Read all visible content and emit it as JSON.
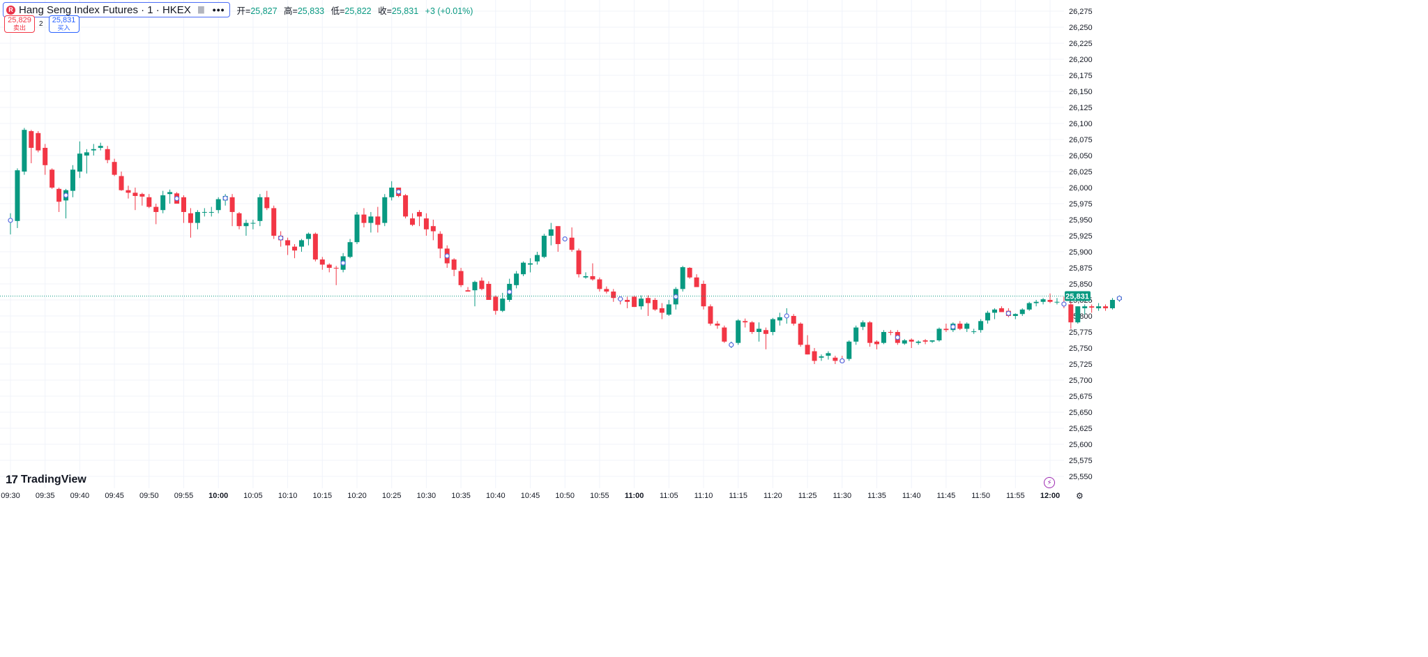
{
  "legend": {
    "symbol_badge": "R",
    "title": "Hang Seng Index Futures · 1 · HKEX",
    "more": "•••",
    "open_label": "开=",
    "open_value": "25,827",
    "high_label": "高=",
    "high_value": "25,833",
    "low_label": "低=",
    "low_value": "25,822",
    "close_label": "收=",
    "close_value": "25,831",
    "change": "+3 (+0.01%)"
  },
  "trade": {
    "sell_price": "25,829",
    "sell_label": "卖出",
    "spread": "2",
    "buy_price": "25,831",
    "buy_label": "买入"
  },
  "brand": {
    "logo_mark": "17",
    "name": "TradingView"
  },
  "colors": {
    "up": "#089981",
    "down": "#f23645",
    "grid": "#f0f3fa",
    "marker": "#5b6ee1"
  },
  "chart_data": {
    "type": "candlestick",
    "title": "Hang Seng Index Futures · 1 · HKEX",
    "interval": "1 minute",
    "ylim": [
      25540,
      26285
    ],
    "y_ticks": [
      "26,275",
      "26,250",
      "26,225",
      "26,200",
      "26,175",
      "26,150",
      "26,125",
      "26,100",
      "26,075",
      "26,050",
      "26,025",
      "26,000",
      "25,975",
      "25,950",
      "25,925",
      "25,900",
      "25,875",
      "25,850",
      "25,825",
      "25,800",
      "25,775",
      "25,750",
      "25,725",
      "25,700",
      "25,675",
      "25,650",
      "25,625",
      "25,600",
      "25,575",
      "25,550"
    ],
    "x_ticks": [
      "09:30",
      "09:35",
      "09:40",
      "09:45",
      "09:50",
      "09:55",
      "10:00",
      "10:05",
      "10:10",
      "10:15",
      "10:20",
      "10:25",
      "10:30",
      "10:35",
      "10:40",
      "10:45",
      "10:50",
      "10:55",
      "11:00",
      "11:05",
      "11:10",
      "11:15",
      "11:20",
      "11:25",
      "11:30",
      "11:35",
      "11:40",
      "11:45",
      "11:50",
      "11:55",
      "12:00"
    ],
    "x_ticks_bold": [
      "10:00",
      "11:00",
      "12:00"
    ],
    "last_price": "25,831",
    "last_price_value": 25831,
    "candles": [
      [
        25948,
        25960,
        25927,
        25950
      ],
      [
        25948,
        26030,
        25937,
        26027
      ],
      [
        26025,
        26093,
        26020,
        26090
      ],
      [
        26088,
        26090,
        26038,
        26062
      ],
      [
        26085,
        26088,
        26055,
        26058
      ],
      [
        26062,
        26068,
        26020,
        26035
      ],
      [
        26028,
        26030,
        25998,
        26000
      ],
      [
        25998,
        26000,
        25962,
        25978
      ],
      [
        25980,
        25998,
        25952,
        25996
      ],
      [
        25995,
        26035,
        25985,
        26028
      ],
      [
        26025,
        26072,
        26015,
        26053
      ],
      [
        26050,
        26060,
        26022,
        26055
      ],
      [
        26058,
        26068,
        26050,
        26060
      ],
      [
        26062,
        26070,
        26058,
        26065
      ],
      [
        26060,
        26065,
        26038,
        26043
      ],
      [
        26040,
        26045,
        26018,
        26020
      ],
      [
        26018,
        26025,
        25995,
        25996
      ],
      [
        25996,
        26003,
        25983,
        25992
      ],
      [
        25992,
        26000,
        25965,
        25987
      ],
      [
        25990,
        25992,
        25972,
        25986
      ],
      [
        25985,
        25990,
        25968,
        25970
      ],
      [
        25970,
        25975,
        25943,
        25962
      ],
      [
        25965,
        25995,
        25960,
        25988
      ],
      [
        25990,
        25997,
        25975,
        25993
      ],
      [
        25991,
        25993,
        25978,
        25975
      ],
      [
        25985,
        25988,
        25945,
        25962
      ],
      [
        25960,
        25968,
        25922,
        25945
      ],
      [
        25945,
        25965,
        25935,
        25962
      ],
      [
        25962,
        25968,
        25955,
        25962
      ],
      [
        25962,
        25970,
        25955,
        25962
      ],
      [
        25965,
        25985,
        25960,
        25982
      ],
      [
        25980,
        25990,
        25972,
        25987
      ],
      [
        25985,
        25990,
        25940,
        25962
      ],
      [
        25960,
        25962,
        25935,
        25940
      ],
      [
        25940,
        25950,
        25925,
        25945
      ],
      [
        25945,
        25950,
        25935,
        25945
      ],
      [
        25948,
        25990,
        25940,
        25985
      ],
      [
        25985,
        25995,
        25965,
        25968
      ],
      [
        25968,
        25972,
        25920,
        25925
      ],
      [
        25925,
        25932,
        25908,
        25918
      ],
      [
        25918,
        25922,
        25895,
        25910
      ],
      [
        25908,
        25912,
        25890,
        25902
      ],
      [
        25908,
        25920,
        25900,
        25918
      ],
      [
        25920,
        25930,
        25910,
        25928
      ],
      [
        25928,
        25930,
        25885,
        25888
      ],
      [
        25888,
        25892,
        25872,
        25880
      ],
      [
        25880,
        25882,
        25868,
        25875
      ],
      [
        25875,
        25878,
        25848,
        25874
      ],
      [
        25872,
        25898,
        25868,
        25893
      ],
      [
        25892,
        25920,
        25890,
        25915
      ],
      [
        25915,
        25962,
        25912,
        25958
      ],
      [
        25958,
        25968,
        25938,
        25945
      ],
      [
        25945,
        25962,
        25930,
        25955
      ],
      [
        25955,
        25970,
        25930,
        25942
      ],
      [
        25945,
        25990,
        25940,
        25985
      ],
      [
        25985,
        26010,
        25980,
        26000
      ],
      [
        26000,
        26000,
        25985,
        25987
      ],
      [
        25988,
        25990,
        25952,
        25955
      ],
      [
        25952,
        25960,
        25940,
        25942
      ],
      [
        25962,
        25965,
        25940,
        25955
      ],
      [
        25952,
        25960,
        25925,
        25935
      ],
      [
        25940,
        25950,
        25918,
        25932
      ],
      [
        25928,
        25932,
        25890,
        25905
      ],
      [
        25905,
        25910,
        25875,
        25882
      ],
      [
        25888,
        25890,
        25862,
        25872
      ],
      [
        25870,
        25875,
        25845,
        25848
      ],
      [
        25840,
        25845,
        25838,
        25838
      ],
      [
        25840,
        25855,
        25815,
        25853
      ],
      [
        25855,
        25860,
        25840,
        25842
      ],
      [
        25850,
        25854,
        25825,
        25825
      ],
      [
        25830,
        25832,
        25802,
        25808
      ],
      [
        25808,
        25836,
        25806,
        25827
      ],
      [
        25825,
        25858,
        25822,
        25850
      ],
      [
        25848,
        25870,
        25843,
        25866
      ],
      [
        25865,
        25885,
        25862,
        25883
      ],
      [
        25880,
        25890,
        25868,
        25882
      ],
      [
        25885,
        25900,
        25880,
        25895
      ],
      [
        25892,
        25928,
        25890,
        25925
      ],
      [
        25925,
        25945,
        25910,
        25935
      ],
      [
        25940,
        25940,
        25900,
        25912
      ],
      [
        25920,
        25922,
        25917,
        25920
      ],
      [
        25922,
        25938,
        25900,
        25903
      ],
      [
        25902,
        25905,
        25860,
        25865
      ],
      [
        25860,
        25868,
        25858,
        25862
      ],
      [
        25862,
        25882,
        25855,
        25857
      ],
      [
        25857,
        25860,
        25838,
        25842
      ],
      [
        25842,
        25846,
        25835,
        25838
      ],
      [
        25838,
        25842,
        25822,
        25828
      ],
      [
        25828,
        25830,
        25818,
        25825
      ],
      [
        25825,
        25830,
        25812,
        25822
      ],
      [
        25830,
        25832,
        25814,
        25814
      ],
      [
        25815,
        25832,
        25810,
        25827
      ],
      [
        25828,
        25832,
        25800,
        25820
      ],
      [
        25825,
        25828,
        25808,
        25810
      ],
      [
        25812,
        25820,
        25795,
        25805
      ],
      [
        25802,
        25825,
        25800,
        25818
      ],
      [
        25818,
        25845,
        25810,
        25842
      ],
      [
        25842,
        25878,
        25838,
        25876
      ],
      [
        25875,
        25876,
        25858,
        25860
      ],
      [
        25860,
        25865,
        25848,
        25845
      ],
      [
        25850,
        25855,
        25810,
        25815
      ],
      [
        25815,
        25818,
        25785,
        25788
      ],
      [
        25788,
        25792,
        25780,
        25785
      ],
      [
        25782,
        25785,
        25758,
        25760
      ],
      [
        25755,
        25760,
        25750,
        25755
      ],
      [
        25758,
        25795,
        25755,
        25793
      ],
      [
        25792,
        25796,
        25782,
        25790
      ],
      [
        25790,
        25792,
        25772,
        25775
      ],
      [
        25775,
        25790,
        25760,
        25780
      ],
      [
        25778,
        25782,
        25748,
        25772
      ],
      [
        25775,
        25797,
        25770,
        25795
      ],
      [
        25793,
        25805,
        25785,
        25798
      ],
      [
        25800,
        25812,
        25788,
        25800
      ],
      [
        25800,
        25803,
        25785,
        25788
      ],
      [
        25788,
        25790,
        25752,
        25755
      ],
      [
        25755,
        25770,
        25740,
        25740
      ],
      [
        25745,
        25750,
        25725,
        25730
      ],
      [
        25735,
        25740,
        25730,
        25737
      ],
      [
        25738,
        25745,
        25732,
        25742
      ],
      [
        25735,
        25738,
        25725,
        25730
      ],
      [
        25732,
        25738,
        25728,
        25728
      ],
      [
        25733,
        25762,
        25730,
        25760
      ],
      [
        25760,
        25785,
        25755,
        25782
      ],
      [
        25783,
        25793,
        25778,
        25790
      ],
      [
        25790,
        25792,
        25752,
        25758
      ],
      [
        25760,
        25762,
        25748,
        25756
      ],
      [
        25758,
        25778,
        25756,
        25775
      ],
      [
        25775,
        25778,
        25770,
        25774
      ],
      [
        25775,
        25778,
        25755,
        25758
      ],
      [
        25757,
        25764,
        25755,
        25762
      ],
      [
        25763,
        25765,
        25750,
        25760
      ],
      [
        25758,
        25762,
        25755,
        25760
      ],
      [
        25762,
        25764,
        25756,
        25760
      ],
      [
        25760,
        25762,
        25758,
        25762
      ],
      [
        25762,
        25782,
        25760,
        25780
      ],
      [
        25780,
        25788,
        25775,
        25778
      ],
      [
        25778,
        25790,
        25775,
        25788
      ],
      [
        25788,
        25792,
        25778,
        25780
      ],
      [
        25780,
        25790,
        25775,
        25788
      ],
      [
        25775,
        25780,
        25772,
        25776
      ],
      [
        25778,
        25795,
        25774,
        25792
      ],
      [
        25793,
        25808,
        25788,
        25805
      ],
      [
        25805,
        25812,
        25795,
        25810
      ],
      [
        25812,
        25815,
        25808,
        25806
      ],
      [
        25808,
        25812,
        25798,
        25800
      ],
      [
        25800,
        25804,
        25795,
        25803
      ],
      [
        25803,
        25812,
        25800,
        25810
      ],
      [
        25810,
        25822,
        25808,
        25820
      ],
      [
        25820,
        25825,
        25815,
        25822
      ],
      [
        25822,
        25828,
        25818,
        25826
      ],
      [
        25825,
        25835,
        25820,
        25822
      ],
      [
        25822,
        25828,
        25818,
        25822
      ],
      [
        25820,
        25830,
        25812,
        25817
      ],
      [
        25818,
        25822,
        25780,
        25790
      ],
      [
        25790,
        25815,
        25788,
        25815
      ],
      [
        25812,
        25818,
        25802,
        25815
      ],
      [
        25815,
        25818,
        25805,
        25813
      ],
      [
        25812,
        25820,
        25808,
        25815
      ],
      [
        25815,
        25818,
        25808,
        25812
      ],
      [
        25812,
        25828,
        25810,
        25825
      ],
      [
        25825,
        25832,
        25822,
        25830
      ]
    ],
    "trade_markers": [
      0,
      8,
      24,
      31,
      39,
      48,
      56,
      63,
      72,
      80,
      88,
      96,
      104,
      112,
      120,
      128,
      136,
      144,
      152,
      160
    ]
  }
}
